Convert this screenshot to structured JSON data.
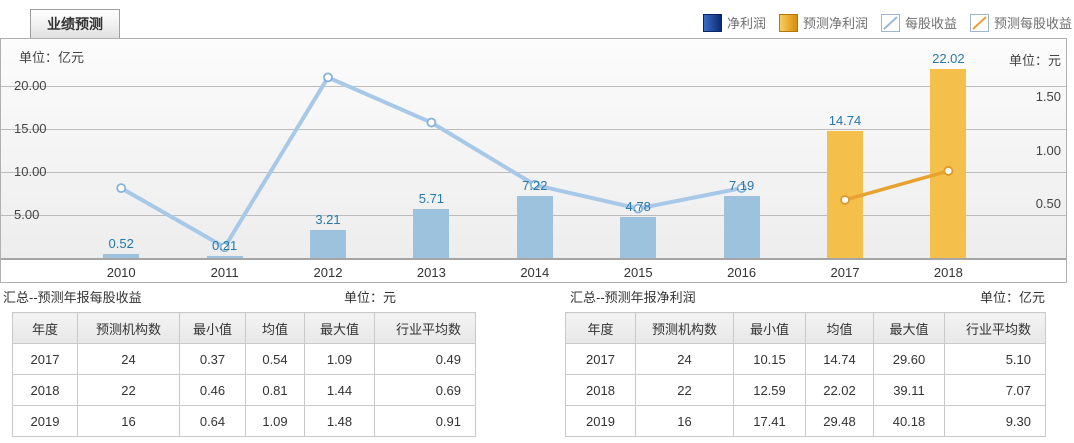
{
  "tab": {
    "label": "业绩预测"
  },
  "legend": {
    "items": [
      {
        "label": "净利润",
        "swatch": "bar",
        "colors": [
          "#3a6cc8",
          "#0c2a70"
        ],
        "border": "#0a2560"
      },
      {
        "label": "预测净利润",
        "swatch": "bar",
        "colors": [
          "#f7ce5e",
          "#d88d0a"
        ],
        "border": "#b27708"
      },
      {
        "label": "每股收益",
        "swatch": "line",
        "colors": [
          "#9ab8dc"
        ],
        "border": "#9fb6cc"
      },
      {
        "label": "预测每股收益",
        "swatch": "line",
        "colors": [
          "#e8a231"
        ],
        "border": "#9fb6cc"
      }
    ]
  },
  "chart_data": {
    "type": "bar+line",
    "categories": [
      "2010",
      "2011",
      "2012",
      "2013",
      "2014",
      "2015",
      "2016",
      "2017",
      "2018"
    ],
    "series": [
      {
        "name": "净利润",
        "type": "bar",
        "axis": "left",
        "unit": "亿元",
        "color": "#9cc2de",
        "values": [
          0.52,
          0.21,
          3.21,
          5.71,
          7.22,
          4.78,
          7.19,
          null,
          null
        ],
        "data_labels": true
      },
      {
        "name": "预测净利润",
        "type": "bar",
        "axis": "left",
        "unit": "亿元",
        "color": "#f4bf4b",
        "values": [
          null,
          null,
          null,
          null,
          null,
          null,
          null,
          14.74,
          22.02
        ],
        "data_labels": true
      },
      {
        "name": "每股收益",
        "type": "line",
        "axis": "right",
        "unit": "元",
        "color": "#a8c8e8",
        "marker_color": "#86b2da",
        "values": [
          0.65,
          0.1,
          1.68,
          1.26,
          0.68,
          0.46,
          0.65,
          null,
          null
        ],
        "data_labels": false
      },
      {
        "name": "预测每股收益",
        "type": "line",
        "axis": "right",
        "unit": "元",
        "color": "#e8a231",
        "marker_color": "#df9a28",
        "values": [
          null,
          null,
          null,
          null,
          null,
          null,
          null,
          0.54,
          0.81
        ],
        "data_labels": false
      }
    ],
    "left_axis": {
      "unit_label": "单位：亿元",
      "range": [
        0,
        25
      ],
      "ticks": [
        20,
        15,
        10,
        5
      ]
    },
    "right_axis": {
      "unit_label": "单位：元",
      "range": [
        0,
        2
      ],
      "ticks": [
        1.5,
        1.0,
        0.5
      ]
    },
    "grid": "horizontal gridlines at left-axis ticks",
    "legend_position": "top-right",
    "value_label_color": "#2878ab"
  },
  "tables": [
    {
      "title": "汇总--预测年报每股收益",
      "unit": "单位：元",
      "headers": [
        "年度",
        "预测机构数",
        "最小值",
        "均值",
        "最大值",
        "行业平均数"
      ],
      "rows": [
        [
          "2017",
          "24",
          "0.37",
          "0.54",
          "1.09",
          "0.49"
        ],
        [
          "2018",
          "22",
          "0.46",
          "0.81",
          "1.44",
          "0.69"
        ],
        [
          "2019",
          "16",
          "0.64",
          "1.09",
          "1.48",
          "0.91"
        ]
      ]
    },
    {
      "title": "汇总--预测年报净利润",
      "unit": "单位：亿元",
      "headers": [
        "年度",
        "预测机构数",
        "最小值",
        "均值",
        "最大值",
        "行业平均数"
      ],
      "rows": [
        [
          "2017",
          "24",
          "10.15",
          "14.74",
          "29.60",
          "5.10"
        ],
        [
          "2018",
          "22",
          "12.59",
          "22.02",
          "39.11",
          "7.07"
        ],
        [
          "2019",
          "16",
          "17.41",
          "29.48",
          "40.18",
          "9.30"
        ]
      ]
    }
  ]
}
